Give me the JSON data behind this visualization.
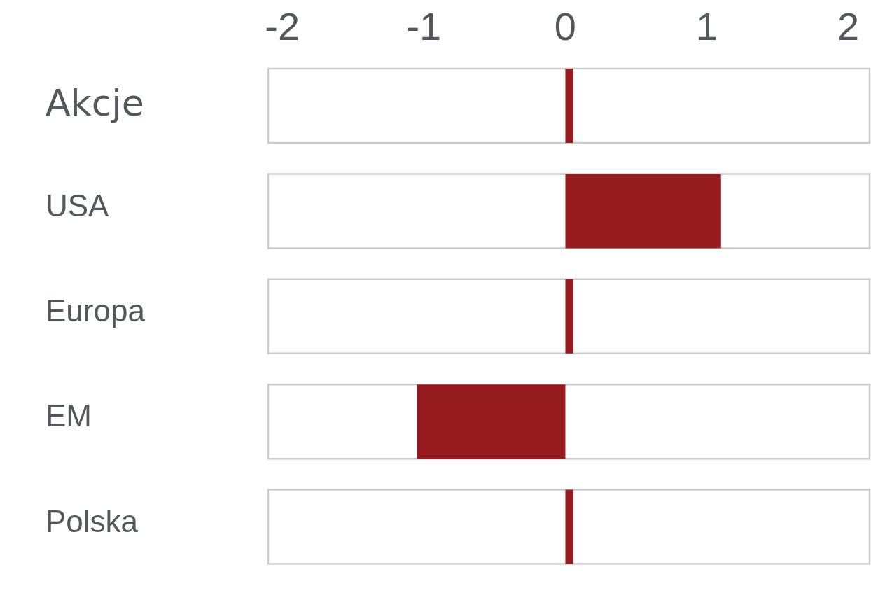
{
  "chart_data": {
    "type": "bar",
    "orientation": "horizontal",
    "categories": [
      "Akcje",
      "USA",
      "Europa",
      "EM",
      "Polska"
    ],
    "values": [
      0,
      1.1,
      0,
      -1.05,
      0
    ],
    "color": "#961c20",
    "xlim": [
      -2.1,
      2.15
    ],
    "xticks": [
      -2,
      -1,
      0,
      1,
      2
    ]
  }
}
